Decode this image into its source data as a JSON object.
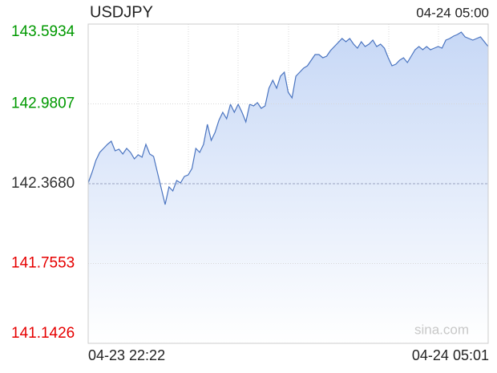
{
  "chart_data": {
    "type": "line",
    "title": "USDJPY",
    "timestamp": "04-24 05:00",
    "watermark": "sina.com",
    "color": "#4a74c0",
    "fill_color": "#c7d8f6",
    "up_color": "#009900",
    "down_color": "#e60000",
    "base_color": "#333333",
    "base": 142.368,
    "grid": true,
    "ylim": [
      141.1426,
      143.5934
    ],
    "yticks": [
      143.5934,
      142.9807,
      {
        "value": 142.368,
        "label": "142.3680"
      },
      141.7553,
      141.1426
    ],
    "categories": [
      "04-23 22:22",
      null,
      null,
      null,
      null,
      null,
      null,
      null,
      null,
      null,
      null,
      null,
      null,
      null,
      null,
      null,
      null,
      null,
      null,
      null,
      null,
      null,
      null,
      null,
      null,
      null,
      null,
      null,
      null,
      null,
      null,
      null,
      null,
      null,
      null,
      null,
      null,
      null,
      null,
      null,
      null,
      null,
      null,
      null,
      null,
      null,
      null,
      null,
      null,
      null,
      null,
      null,
      null,
      null,
      null,
      null,
      null,
      null,
      null,
      null,
      null,
      null,
      null,
      null,
      null,
      null,
      null,
      null,
      null,
      null,
      null,
      null,
      null,
      null,
      null,
      null,
      null,
      null,
      null,
      null,
      null,
      null,
      null,
      null,
      null,
      null,
      null,
      null,
      null,
      null,
      null,
      null,
      null,
      null,
      null,
      null,
      null,
      null,
      null,
      null,
      null,
      null,
      null,
      null,
      "04-24 05:01"
    ],
    "values": [
      142.3741,
      142.4542,
      142.5465,
      142.6081,
      142.6389,
      142.6697,
      142.6943,
      142.6204,
      142.6328,
      142.5958,
      142.6389,
      142.6081,
      142.5589,
      142.5896,
      142.5712,
      142.6697,
      142.5958,
      142.5773,
      142.4542,
      142.331,
      142.2078,
      142.3433,
      142.3125,
      142.3926,
      142.3741,
      142.4234,
      142.4357,
      142.485,
      142.6389,
      142.6081,
      142.6697,
      142.8236,
      142.7005,
      142.7621,
      142.8544,
      142.916,
      142.8668,
      142.9776,
      142.916,
      142.9776,
      142.916,
      142.8421,
      142.9776,
      142.9653,
      142.9899,
      142.9468,
      142.9653,
      143.1008,
      143.1623,
      143.1008,
      143.1931,
      143.2239,
      143.07,
      143.0269,
      143.1931,
      143.2239,
      143.2547,
      143.2732,
      143.3163,
      143.3594,
      143.3594,
      143.3348,
      143.3471,
      143.3902,
      143.421,
      143.4518,
      143.4826,
      143.4579,
      143.4826,
      143.4394,
      143.4087,
      143.4579,
      143.421,
      143.4394,
      143.4702,
      143.421,
      143.4394,
      143.4087,
      143.3348,
      143.2732,
      143.2855,
      143.3163,
      143.3348,
      143.2978,
      143.3471,
      143.3963,
      143.421,
      143.3963,
      143.421,
      143.3963,
      143.4087,
      143.421,
      143.4087,
      143.4702,
      143.4826,
      143.501,
      143.5133,
      143.5318,
      143.4949,
      143.4826,
      143.4702,
      143.4826,
      143.4949,
      143.4579,
      143.421
    ]
  }
}
